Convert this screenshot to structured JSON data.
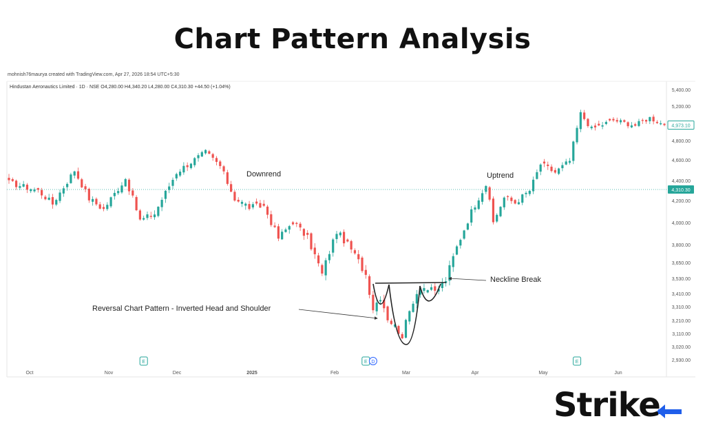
{
  "title": "Chart Pattern Analysis",
  "credit": "mohnish76maurya created with TradingView.com, Apr 27, 2026 18:54 UTC+5:30",
  "symbol_line": "Hindustan Aeronautics Limited · 1D · NSE  O4,280.00  H4,340.20  L4,280.00  C4,310.30  +44.50 (+1.04%)",
  "brand": "Strike",
  "colors": {
    "up": "#26a69a",
    "down": "#ef5350",
    "axis_text": "#555555",
    "price_line": "#26a69a",
    "badge_bg": "#26a69a"
  },
  "chart_data": {
    "type": "candlestick",
    "y_ticks": [
      2930,
      3020,
      3110,
      3210,
      3310,
      3410,
      3530,
      3650,
      3800,
      4000,
      4200,
      4400,
      4600,
      4800,
      5000,
      5200,
      5400
    ],
    "y_tick_labels": [
      "2,930.00",
      "3,020.00",
      "3,110.00",
      "3,210.00",
      "3,310.00",
      "3,410.00",
      "3,530.00",
      "3,650.00",
      "3,800.00",
      "4,000.00",
      "4,200.00",
      "4,400.00",
      "4,600.00",
      "4,800.00",
      "5,000.00",
      "5,200.00",
      "5,400.00"
    ],
    "x_labels": [
      "Oct",
      "Nov",
      "Dec",
      "2025",
      "Feb",
      "Mar",
      "Apr",
      "May",
      "Jun"
    ],
    "price_badges": [
      {
        "label": "4,973.10",
        "value": 4973.1,
        "style": "outline"
      },
      {
        "label": "4,310.30",
        "value": 4310.3,
        "style": "filled"
      }
    ],
    "event_markers": [
      {
        "label": "E",
        "date_index": 37
      },
      {
        "label": "E",
        "date_index": 98
      },
      {
        "label": "D",
        "date_index": 100
      },
      {
        "label": "E",
        "date_index": 156
      }
    ],
    "key_points": [
      {
        "i": 0,
        "v": 4380
      },
      {
        "i": 8,
        "v": 4300
      },
      {
        "i": 12,
        "v": 4170
      },
      {
        "i": 18,
        "v": 4500
      },
      {
        "i": 22,
        "v": 4220
      },
      {
        "i": 26,
        "v": 4120
      },
      {
        "i": 32,
        "v": 4420
      },
      {
        "i": 36,
        "v": 4020
      },
      {
        "i": 40,
        "v": 4080
      },
      {
        "i": 46,
        "v": 4480
      },
      {
        "i": 54,
        "v": 4680
      },
      {
        "i": 58,
        "v": 4540
      },
      {
        "i": 62,
        "v": 4220
      },
      {
        "i": 66,
        "v": 4140
      },
      {
        "i": 70,
        "v": 4150
      },
      {
        "i": 74,
        "v": 3860
      },
      {
        "i": 78,
        "v": 4010
      },
      {
        "i": 82,
        "v": 3860
      },
      {
        "i": 86,
        "v": 3560
      },
      {
        "i": 90,
        "v": 3920
      },
      {
        "i": 94,
        "v": 3760
      },
      {
        "i": 98,
        "v": 3560
      },
      {
        "i": 100,
        "v": 3300
      },
      {
        "i": 102,
        "v": 3390
      },
      {
        "i": 104,
        "v": 3230
      },
      {
        "i": 108,
        "v": 3100
      },
      {
        "i": 111,
        "v": 3360
      },
      {
        "i": 113,
        "v": 3470
      },
      {
        "i": 117,
        "v": 3420
      },
      {
        "i": 120,
        "v": 3520
      },
      {
        "i": 123,
        "v": 3780
      },
      {
        "i": 127,
        "v": 4100
      },
      {
        "i": 131,
        "v": 4360
      },
      {
        "i": 133,
        "v": 4000
      },
      {
        "i": 136,
        "v": 4230
      },
      {
        "i": 139,
        "v": 4180
      },
      {
        "i": 143,
        "v": 4300
      },
      {
        "i": 146,
        "v": 4560
      },
      {
        "i": 150,
        "v": 4480
      },
      {
        "i": 154,
        "v": 4590
      },
      {
        "i": 157,
        "v": 5110
      },
      {
        "i": 160,
        "v": 4930
      },
      {
        "i": 166,
        "v": 5030
      },
      {
        "i": 172,
        "v": 4970
      },
      {
        "i": 176,
        "v": 5060
      },
      {
        "i": 180,
        "v": 4973
      }
    ],
    "annotations": [
      {
        "text": "Downrend"
      },
      {
        "text": "Uptrend"
      },
      {
        "text": "Neckline Break"
      },
      {
        "text": "Reversal Chart Pattern - Inverted Head and Shoulder"
      }
    ]
  }
}
